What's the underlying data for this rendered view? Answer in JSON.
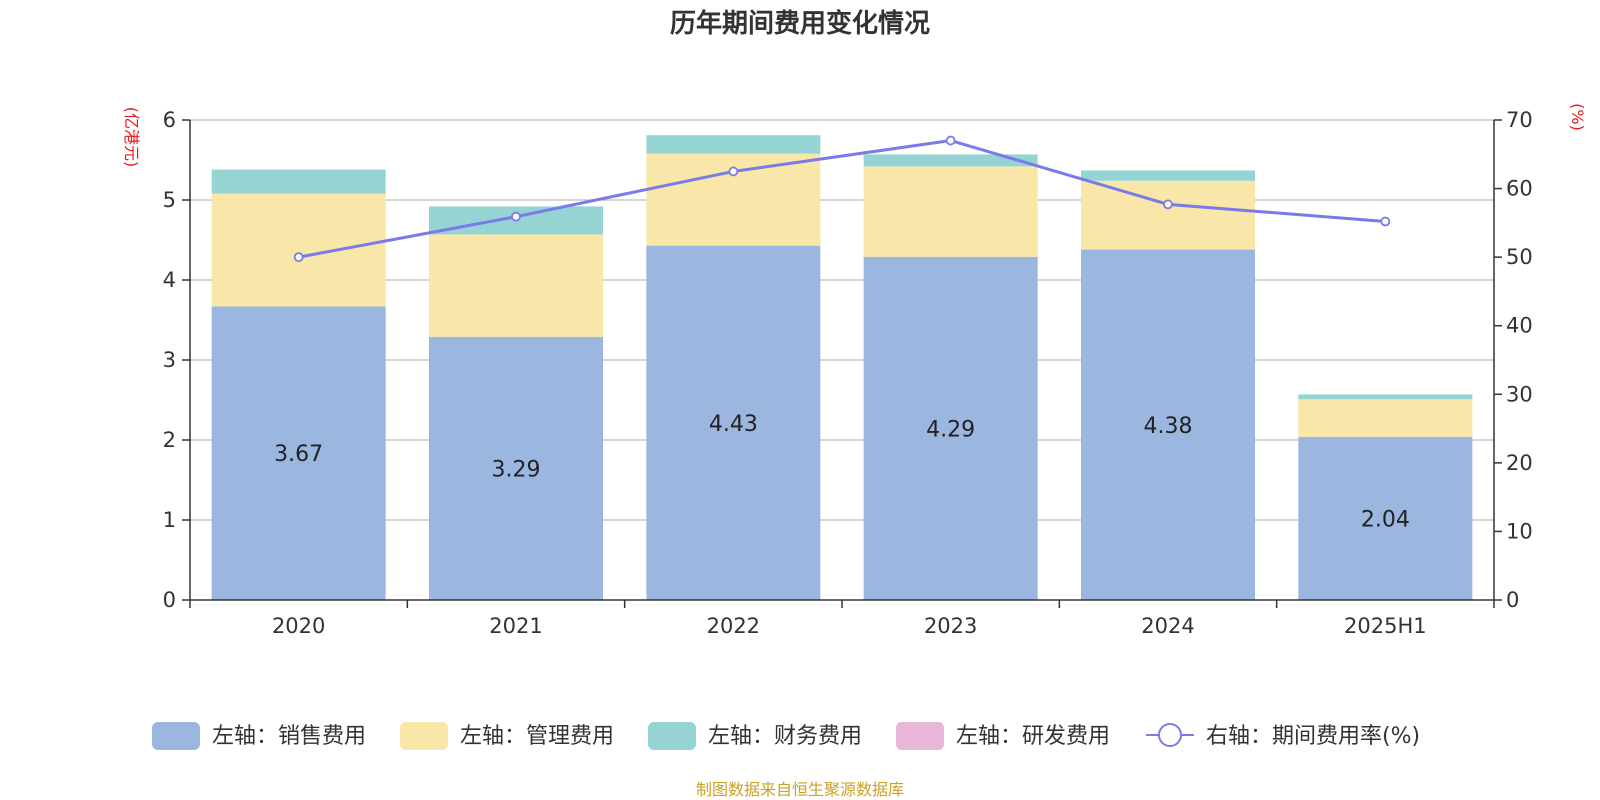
{
  "chart_data": {
    "type": "bar",
    "title": "历年期间费用变化情况",
    "categories": [
      "2020",
      "2021",
      "2022",
      "2023",
      "2024",
      "2025H1"
    ],
    "left_axis": {
      "unit_label": "(亿港元)",
      "min": 0,
      "max": 6,
      "ticks": [
        "0",
        "1",
        "2",
        "3",
        "4",
        "5",
        "6"
      ]
    },
    "right_axis": {
      "unit_label": "(%)",
      "min": 0,
      "max": 70,
      "ticks": [
        "0",
        "10",
        "20",
        "30",
        "40",
        "50",
        "60",
        "70"
      ]
    },
    "series": [
      {
        "name": "左轴：销售费用",
        "type": "bar",
        "axis": "left",
        "color": "#9bb7e0",
        "values": [
          3.67,
          3.29,
          4.43,
          4.29,
          4.38,
          2.04
        ],
        "labels": [
          "3.67",
          "3.29",
          "4.43",
          "4.29",
          "4.38",
          "2.04"
        ]
      },
      {
        "name": "左轴：管理费用",
        "type": "bar",
        "axis": "left",
        "color": "#f8e7a8",
        "values": [
          1.41,
          1.28,
          1.15,
          1.13,
          0.86,
          0.47
        ]
      },
      {
        "name": "左轴：财务费用",
        "type": "bar",
        "axis": "left",
        "color": "#96d4d4",
        "values": [
          0.3,
          0.35,
          0.23,
          0.15,
          0.13,
          0.06
        ]
      },
      {
        "name": "左轴：研发费用",
        "type": "bar",
        "axis": "left",
        "color": "#e8b7d8",
        "values": [
          0,
          0,
          0,
          0,
          0,
          0
        ]
      },
      {
        "name": "右轴：期间费用率(%)",
        "type": "line",
        "axis": "right",
        "color": "#7a7ae8",
        "values": [
          50.0,
          55.9,
          62.5,
          67.0,
          57.7,
          55.2
        ]
      }
    ],
    "legend_position": "bottom"
  },
  "source": "制图数据来自恒生聚源数据库"
}
